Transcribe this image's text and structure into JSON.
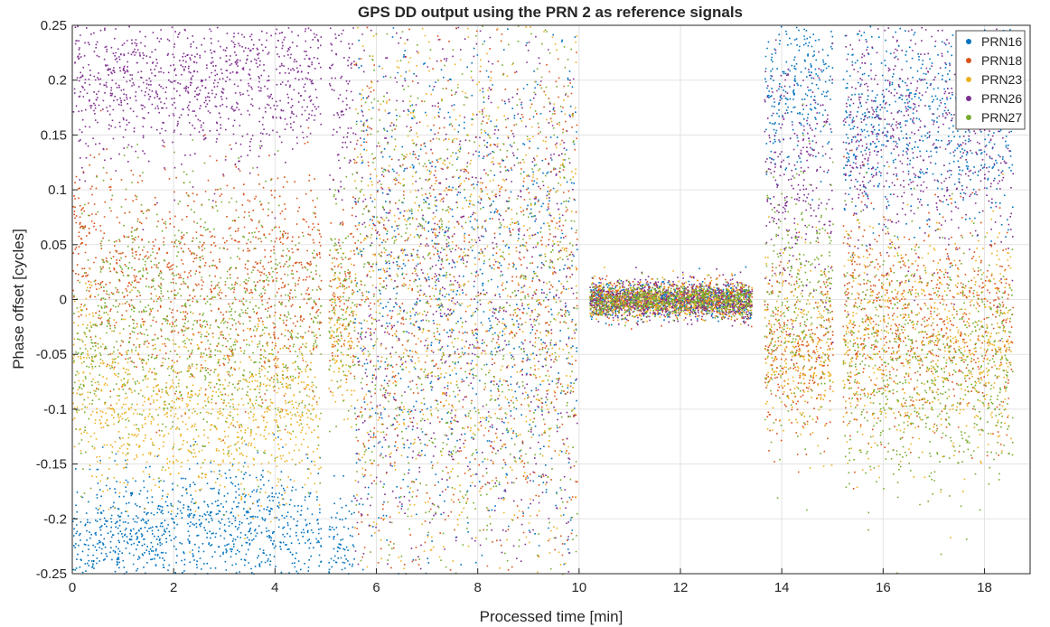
{
  "chart_data": {
    "type": "scatter",
    "title": "GPS DD output using the PRN 2 as reference signals",
    "xlabel": "Processed time [min]",
    "ylabel": "Phase offset [cycles]",
    "xlim": [
      0,
      18.9
    ],
    "ylim": [
      -0.25,
      0.25
    ],
    "xticks": [
      0,
      2,
      4,
      6,
      8,
      10,
      12,
      14,
      16,
      18
    ],
    "xtick_labels": [
      "0",
      "2",
      "4",
      "6",
      "8",
      "10",
      "12",
      "14",
      "16",
      "18"
    ],
    "yticks": [
      -0.25,
      -0.2,
      -0.15,
      -0.1,
      -0.05,
      0,
      0.05,
      0.1,
      0.15,
      0.2,
      0.25
    ],
    "ytick_labels": [
      "-0.25",
      "-0.2",
      "-0.15",
      "-0.1",
      "-0.05",
      "0",
      "0.05",
      "0.1",
      "0.15",
      "0.2",
      "0.25"
    ],
    "grid": true,
    "legend_position": "top-right",
    "series": [
      {
        "name": "PRN16",
        "color": "#0072BD"
      },
      {
        "name": "PRN18",
        "color": "#D95319"
      },
      {
        "name": "PRN23",
        "color": "#EDB120"
      },
      {
        "name": "PRN26",
        "color": "#7E2F8E"
      },
      {
        "name": "PRN27",
        "color": "#77AC30"
      }
    ],
    "segments": [
      {
        "x": [
          0.0,
          0.45
        ],
        "series": {
          "PRN16": [
            -0.23,
            0.03
          ],
          "PRN18": [
            0.05,
            0.04
          ],
          "PRN23": [
            -0.06,
            0.05
          ],
          "PRN26": [
            0.2,
            0.04
          ],
          "PRN27": [
            -0.05,
            0.05
          ]
        }
      },
      {
        "x": [
          0.45,
          4.9
        ],
        "series": {
          "PRN16": [
            -0.21,
            0.03
          ],
          "PRN18": [
            0.02,
            0.05
          ],
          "PRN23": [
            -0.1,
            0.04
          ],
          "PRN26": [
            0.2,
            0.035
          ],
          "PRN27": [
            -0.02,
            0.06
          ]
        }
      },
      {
        "x": [
          5.05,
          5.55
        ],
        "series": {
          "PRN16": [
            -0.23,
            0.03
          ],
          "PRN18": [
            0.0,
            0.04
          ],
          "PRN23": [
            -0.03,
            0.04
          ],
          "PRN26": [
            0.18,
            0.05
          ],
          "PRN27": [
            0.0,
            0.05
          ]
        }
      },
      {
        "x": [
          5.55,
          9.95
        ],
        "series": {
          "PRN16": [
            0.0,
            0.15
          ],
          "PRN18": [
            0.0,
            0.15
          ],
          "PRN23": [
            0.0,
            0.15
          ],
          "PRN26": [
            0.0,
            0.15
          ],
          "PRN27": [
            0.0,
            0.15
          ]
        }
      },
      {
        "x": [
          10.2,
          13.4
        ],
        "series": {
          "PRN16": [
            0.0,
            0.008
          ],
          "PRN18": [
            0.0,
            0.008
          ],
          "PRN23": [
            0.0,
            0.008
          ],
          "PRN26": [
            0.0,
            0.009
          ],
          "PRN27": [
            0.0,
            0.007
          ]
        }
      },
      {
        "x": [
          13.65,
          15.0
        ],
        "series": {
          "PRN16": [
            0.2,
            0.04
          ],
          "PRN18": [
            -0.05,
            0.04
          ],
          "PRN23": [
            -0.04,
            0.04
          ],
          "PRN26": [
            0.12,
            0.06
          ],
          "PRN27": [
            0.0,
            0.06
          ]
        }
      },
      {
        "x": [
          15.2,
          18.55
        ],
        "series": {
          "PRN16": [
            0.17,
            0.05
          ],
          "PRN18": [
            -0.02,
            0.05
          ],
          "PRN23": [
            -0.04,
            0.05
          ],
          "PRN26": [
            0.15,
            0.06
          ],
          "PRN27": [
            -0.06,
            0.06
          ]
        }
      }
    ]
  }
}
